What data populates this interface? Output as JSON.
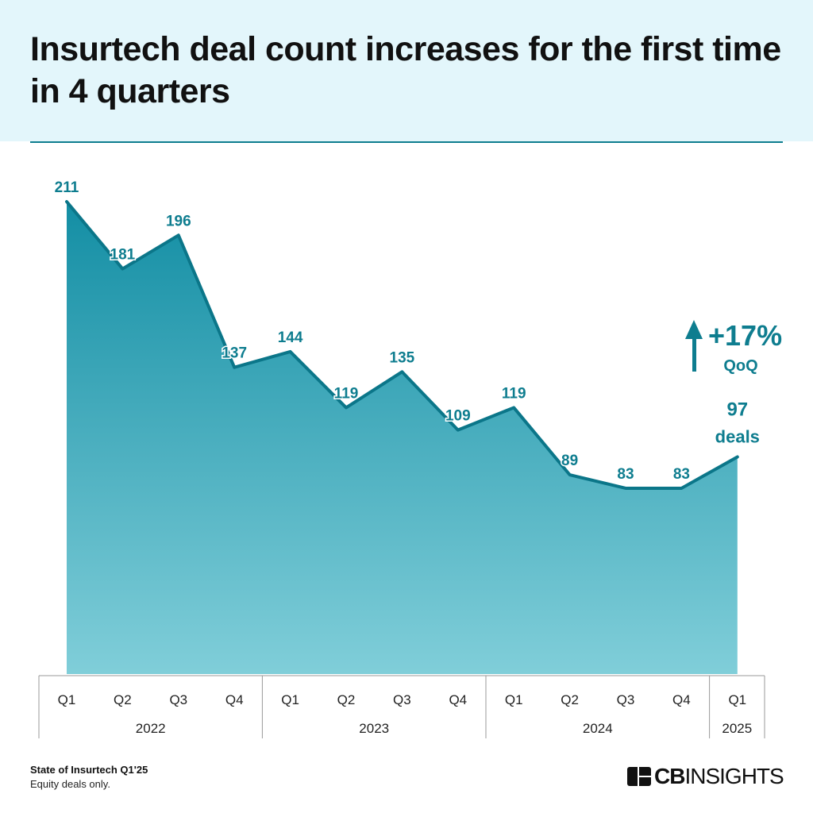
{
  "title": "Insurtech deal count increases for the first time in 4 quarters",
  "chart_data": {
    "type": "area",
    "title": "Insurtech deal count increases for the first time in 4 quarters",
    "categories": [
      "Q1",
      "Q2",
      "Q3",
      "Q4",
      "Q1",
      "Q2",
      "Q3",
      "Q4",
      "Q1",
      "Q2",
      "Q3",
      "Q4",
      "Q1"
    ],
    "years": [
      {
        "label": "2022",
        "quarters": 4
      },
      {
        "label": "2023",
        "quarters": 4
      },
      {
        "label": "2024",
        "quarters": 4
      },
      {
        "label": "2025",
        "quarters": 1
      }
    ],
    "values": [
      211,
      181,
      196,
      137,
      144,
      119,
      135,
      109,
      119,
      89,
      83,
      83,
      97
    ],
    "ylim": [
      0,
      211
    ],
    "grid": false,
    "last_label_suffix": "deals",
    "annotation": {
      "value": "+17%",
      "sub": "QoQ",
      "icon": "arrow-up-icon"
    },
    "colors": {
      "line": "#0b7689",
      "label": "#0e7d8f",
      "fill_top": "#138ea4",
      "fill_bottom": "#80ced9"
    }
  },
  "footer": {
    "source": "State of Insurtech Q1'25",
    "note": "Equity deals only."
  },
  "logo": {
    "bold": "CB",
    "light": "INSIGHTS"
  }
}
